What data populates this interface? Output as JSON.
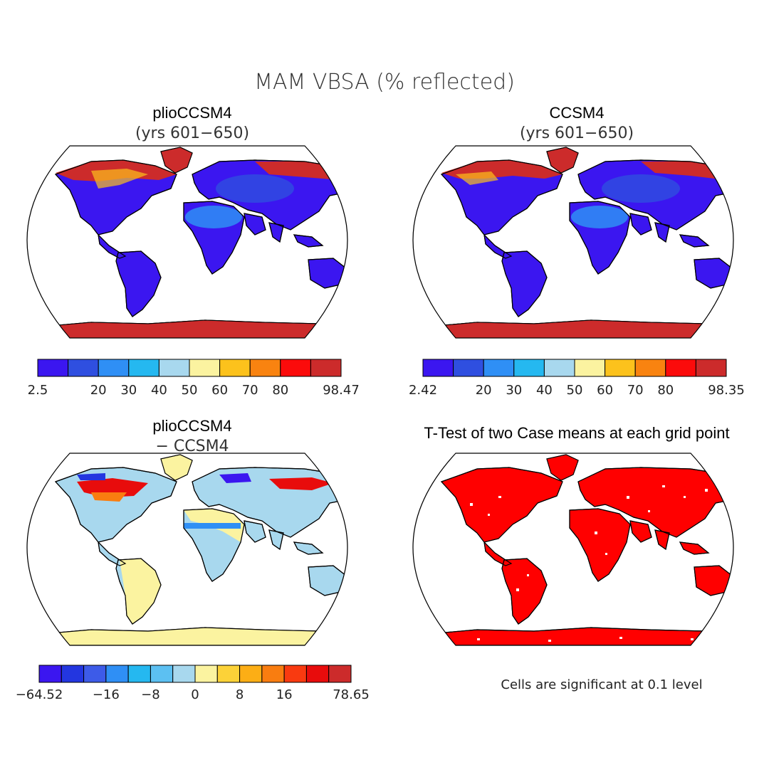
{
  "figure": {
    "title": "MAM VBSA (% reflected)"
  },
  "panels": {
    "top_left": {
      "title": "plioCCSM4",
      "subtitle": "(yrs 601−650)"
    },
    "top_right": {
      "title": "CCSM4",
      "subtitle": "(yrs 601−650)"
    },
    "bottom_left": {
      "title": "plioCCSM4",
      "subtitle": "− CCSM4"
    },
    "bottom_right": {
      "title": "T-Test of two Case means at each grid point",
      "note": "Cells are significant at 0.1 level"
    }
  },
  "colorbars": {
    "top_left": {
      "colors": [
        "#3b16f0",
        "#2f4fe0",
        "#2f8ff5",
        "#25b8f0",
        "#a8d8ee",
        "#fbf3a0",
        "#fcc21c",
        "#f98310",
        "#fb0b0b",
        "#cc2b2b"
      ],
      "labels": [
        "2.5",
        "",
        "20",
        "30",
        "40",
        "50",
        "60",
        "70",
        "80",
        "",
        "98.47"
      ]
    },
    "top_right": {
      "colors": [
        "#3b16f0",
        "#2f4fe0",
        "#2f8ff5",
        "#25b8f0",
        "#a8d8ee",
        "#fbf3a0",
        "#fcc21c",
        "#f98310",
        "#fb0b0b",
        "#cc2b2b"
      ],
      "labels": [
        "2.42",
        "",
        "20",
        "30",
        "40",
        "50",
        "60",
        "70",
        "80",
        "",
        "98.35"
      ]
    },
    "bottom_left": {
      "colors": [
        "#3b16f0",
        "#2336e0",
        "#3d5be8",
        "#2f8ff5",
        "#25b8f0",
        "#5cc0f2",
        "#a8d8ee",
        "#fbf3a0",
        "#fcd238",
        "#fcae15",
        "#f97d10",
        "#f93a10",
        "#e80c0c",
        "#cc2b2b"
      ],
      "labels": [
        "−64.52",
        "",
        "",
        "−16",
        "",
        "−8",
        "",
        "0",
        "",
        "8",
        "",
        "16",
        "",
        "",
        "78.65"
      ]
    }
  },
  "colors": {
    "land_low": "#3b16f0",
    "ice_high": "#cc2b2b",
    "diff_neutral": "#a8d8ee",
    "diff_pos": "#fbf3a0",
    "significant": "#ff0000"
  }
}
